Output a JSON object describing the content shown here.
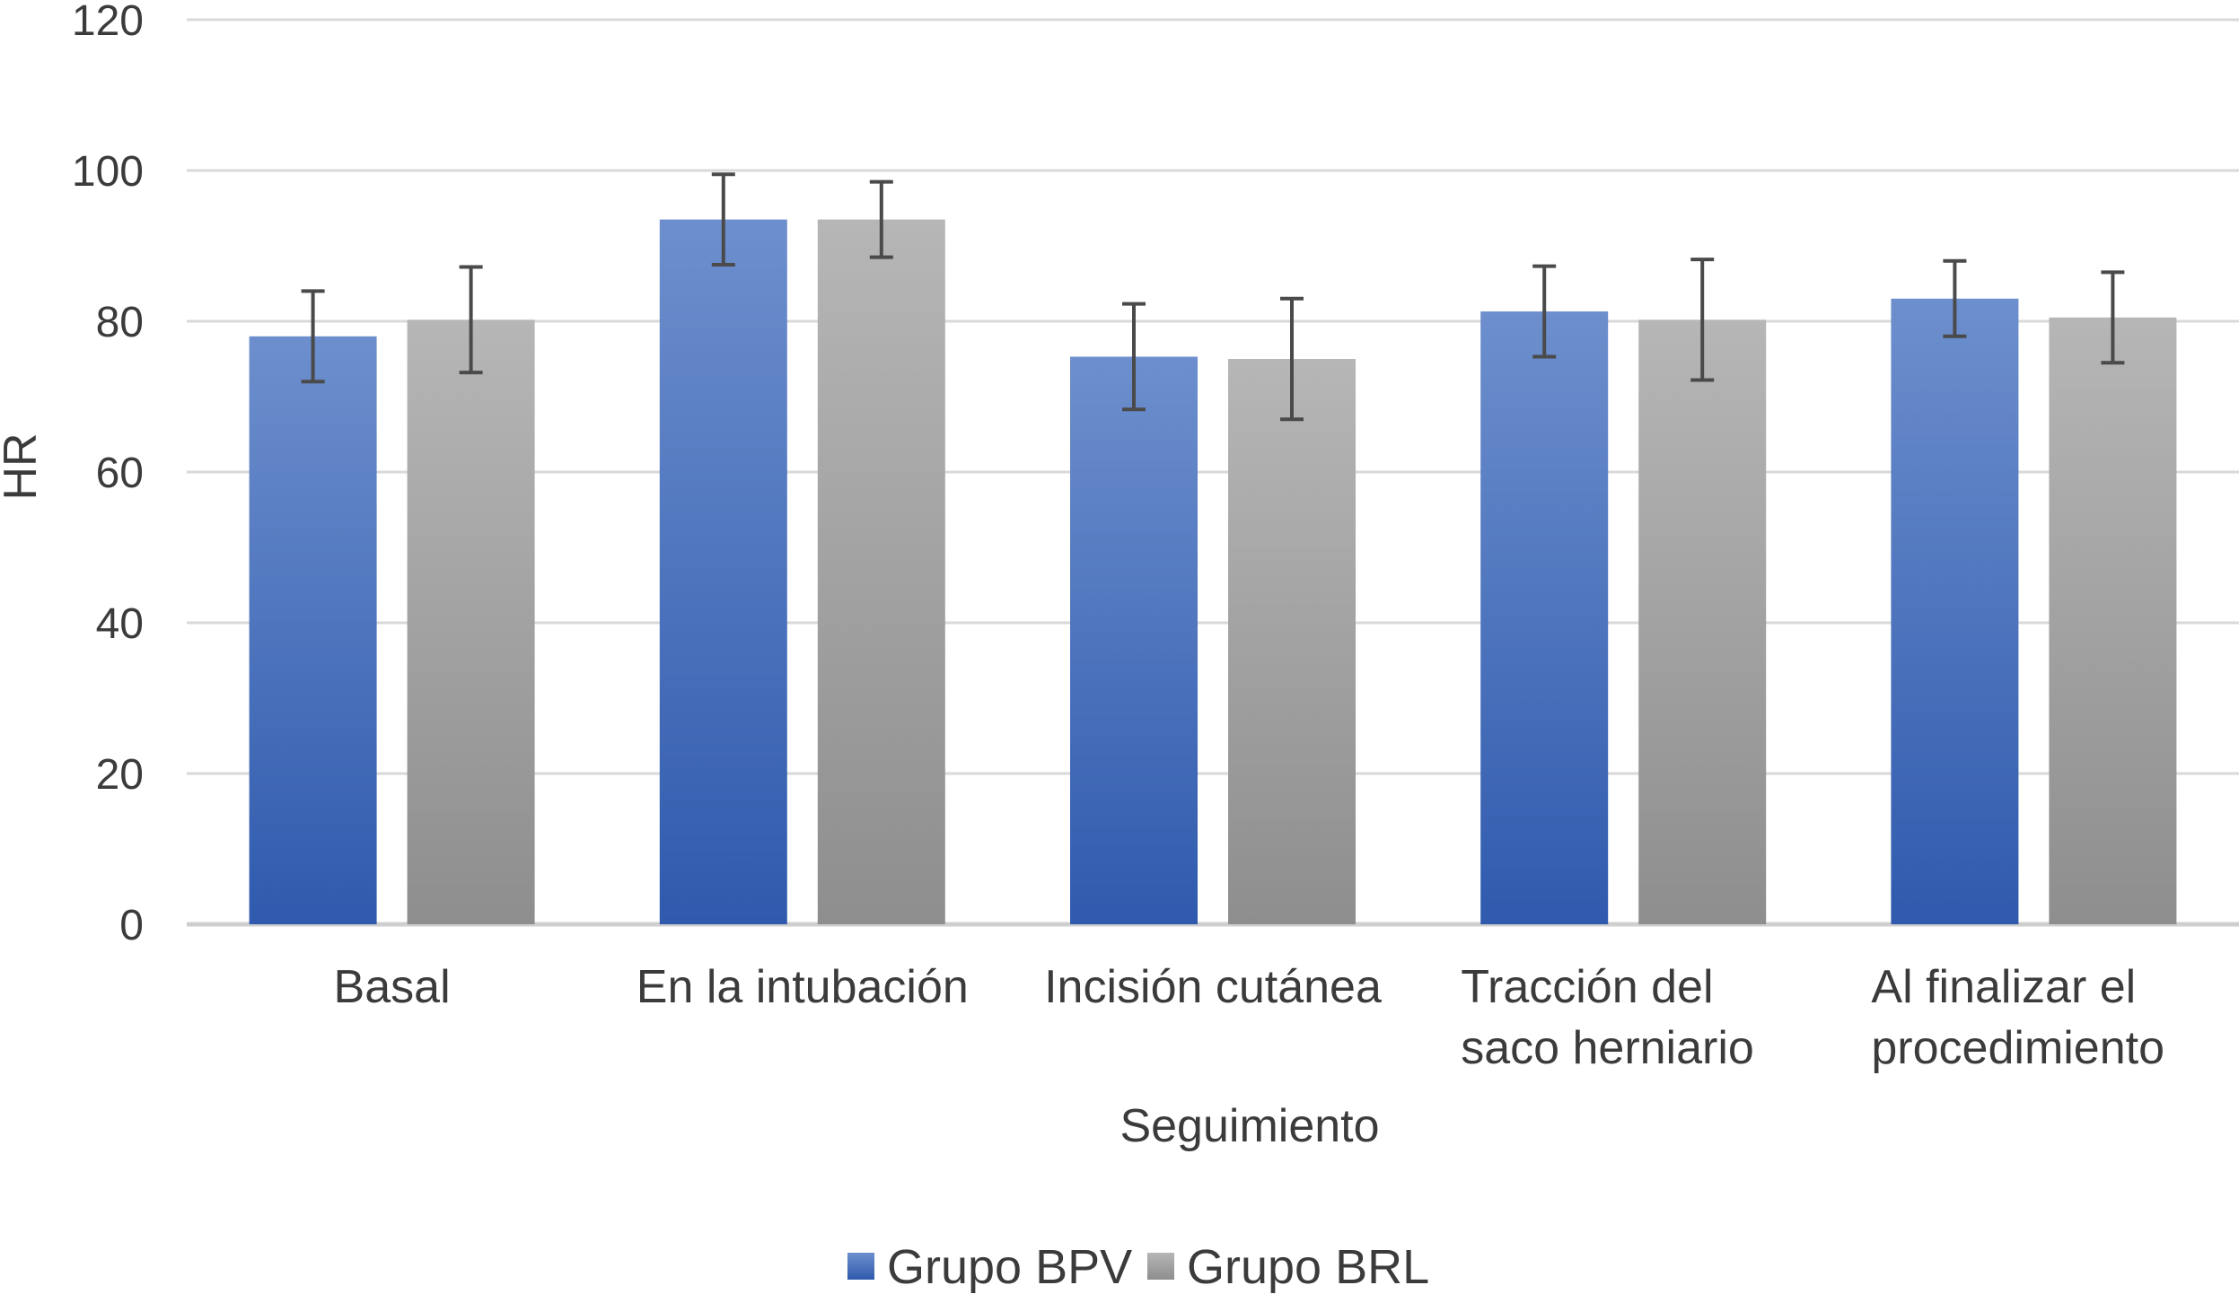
{
  "chart_data": {
    "type": "bar",
    "title": "",
    "xlabel": "Seguimiento",
    "ylabel": "HR",
    "ylim": [
      0,
      120
    ],
    "yticks": [
      0,
      20,
      40,
      60,
      80,
      100,
      120
    ],
    "grid": true,
    "legend_position": "bottom-center",
    "categories": [
      [
        "Basal"
      ],
      [
        "En la intubación"
      ],
      [
        "Incisión cutánea"
      ],
      [
        "Tracción del",
        "saco herniario"
      ],
      [
        "Al finalizar el",
        "procedimiento"
      ]
    ],
    "series": [
      {
        "name": "Grupo BPV",
        "color": "#3f68b5",
        "values": [
          78,
          93.5,
          75.3,
          81.3,
          83
        ],
        "error": [
          6,
          6,
          7,
          6,
          5
        ]
      },
      {
        "name": "Grupo BRL",
        "color": "#a5a5a5",
        "values": [
          80.2,
          93.5,
          75,
          80.2,
          80.5
        ],
        "error": [
          7,
          5,
          8,
          8,
          6
        ]
      }
    ]
  }
}
